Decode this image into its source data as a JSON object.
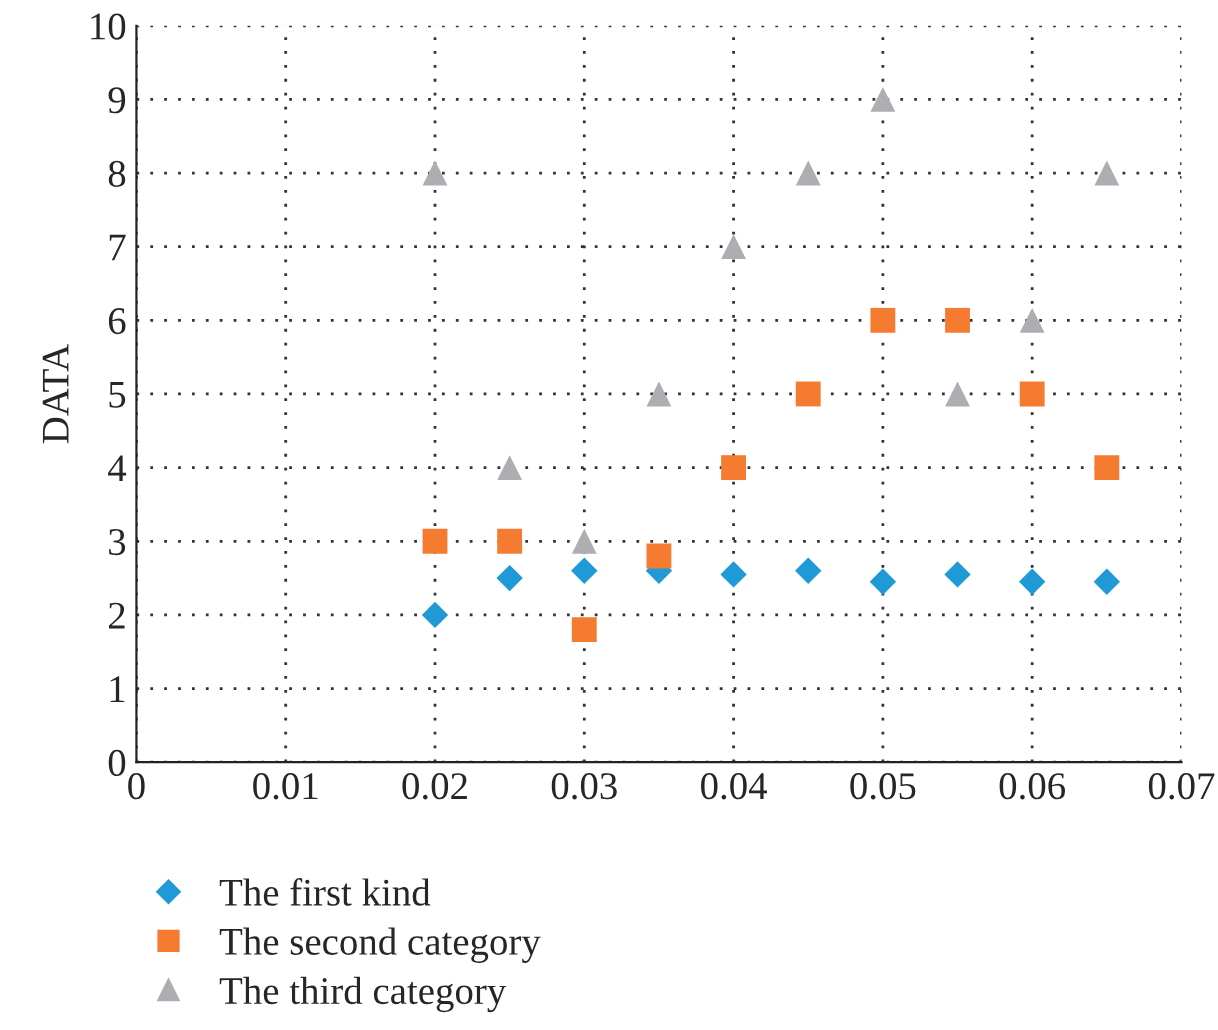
{
  "chart_data": {
    "type": "scatter",
    "ylabel": "DATA",
    "x": [
      0.02,
      0.025,
      0.03,
      0.035,
      0.04,
      0.045,
      0.05,
      0.055,
      0.06,
      0.065
    ],
    "series": [
      {
        "name": "The first kind",
        "color": "#1f9ad6",
        "marker": "diamond",
        "values": [
          2.0,
          2.5,
          2.6,
          2.6,
          2.55,
          2.6,
          2.45,
          2.55,
          2.45,
          2.45
        ]
      },
      {
        "name": "The second category",
        "color": "#f47b2f",
        "marker": "square",
        "values": [
          3,
          3,
          1.8,
          2.8,
          4,
          5,
          6,
          6,
          5,
          4
        ]
      },
      {
        "name": "The third category",
        "color": "#adaeb2",
        "marker": "triangle",
        "values": [
          8,
          4,
          3,
          5,
          7,
          8,
          9,
          5,
          6,
          8
        ]
      }
    ],
    "xlim": [
      0,
      0.07
    ],
    "xticks": [
      0,
      0.01,
      0.02,
      0.03,
      0.04,
      0.05,
      0.06,
      0.07
    ],
    "ylim": [
      0,
      10
    ],
    "yticks": [
      0,
      1,
      2,
      3,
      4,
      5,
      6,
      7,
      8,
      9,
      10
    ],
    "grid": true,
    "legend": "bottom left"
  }
}
